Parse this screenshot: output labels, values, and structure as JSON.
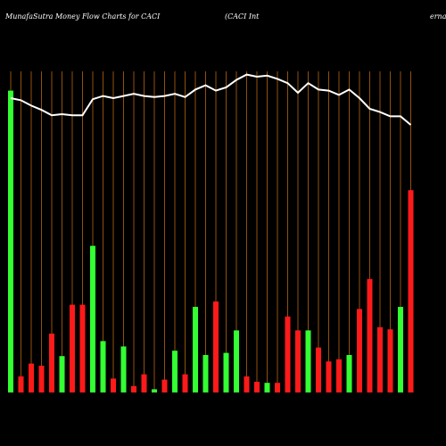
{
  "chart_data": {
    "type": "bar",
    "title": "MunafaSutra  Money Flow  Charts for CACI",
    "subtitle": "(CACI Int",
    "subtitle_tail": "ernatio",
    "ylim": [
      0,
      300
    ],
    "series": [
      {
        "name": "Money flow",
        "up_color": "#33ff33",
        "down_color": "#ff1a1a",
        "directions": [
          "up",
          "down",
          "down",
          "down",
          "down",
          "up",
          "down",
          "down",
          "up",
          "up",
          "down",
          "up",
          "down",
          "down",
          "up",
          "down",
          "up",
          "down",
          "up",
          "up",
          "down",
          "up",
          "up",
          "down",
          "down",
          "up",
          "down",
          "down",
          "down",
          "up",
          "down",
          "down",
          "down",
          "up",
          "down",
          "down",
          "down",
          "down",
          "up",
          "down"
        ],
        "values": [
          282,
          15,
          27,
          25,
          55,
          34,
          82,
          82,
          137,
          48,
          13,
          43,
          6,
          17,
          3,
          12,
          39,
          17,
          80,
          35,
          85,
          37,
          58,
          15,
          10,
          9,
          9,
          71,
          58,
          58,
          42,
          29,
          31,
          35,
          78,
          106,
          61,
          59,
          80,
          189
        ]
      },
      {
        "name": "Price",
        "type": "line",
        "color": "#ffffff",
        "values": [
          275,
          273,
          268,
          264,
          259,
          260,
          259,
          259,
          274,
          277,
          275,
          277,
          279,
          277,
          276,
          277,
          279,
          276,
          283,
          287,
          282,
          285,
          292,
          297,
          295,
          296,
          293,
          289,
          280,
          289,
          283,
          282,
          278,
          283,
          275,
          265,
          262,
          258,
          258,
          250
        ]
      }
    ],
    "grid_color": "#b8650f"
  }
}
